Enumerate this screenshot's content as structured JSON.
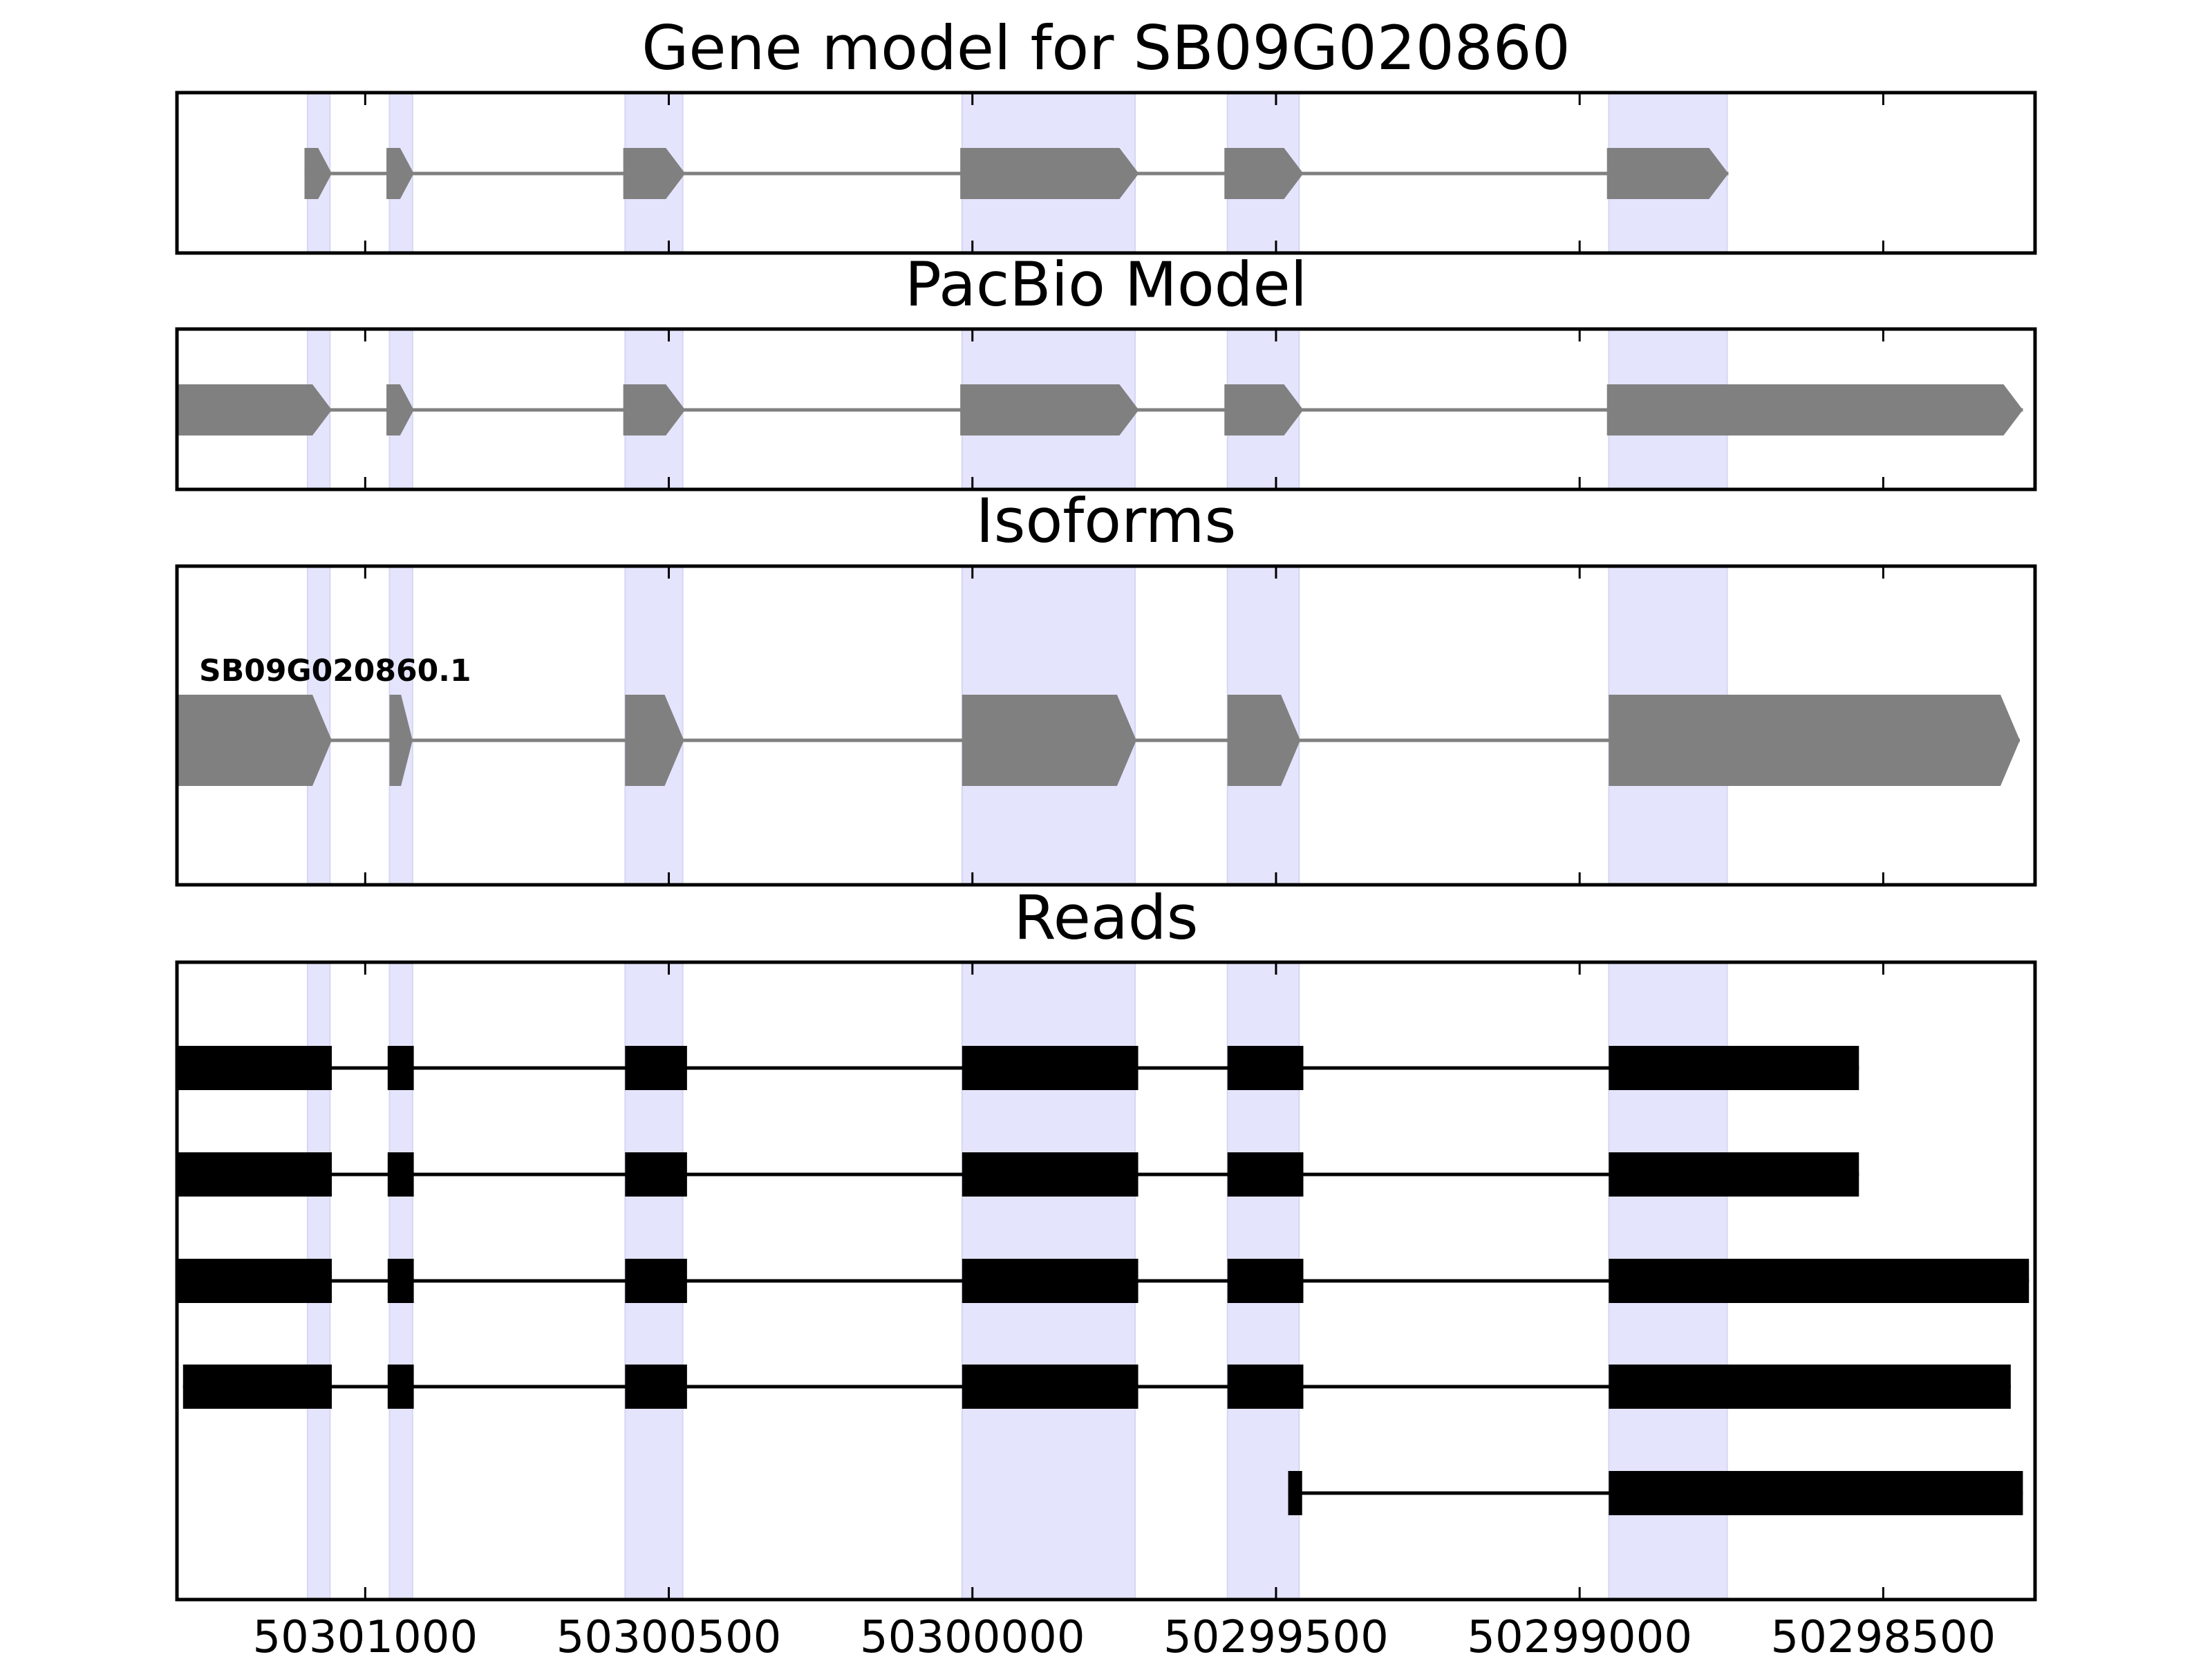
{
  "chart_data": {
    "type": "gene-model-tracks",
    "xaxis": {
      "reversed": true,
      "xlim": [
        50301310,
        50298250
      ],
      "ticks": [
        50301000,
        50300500,
        50300000,
        50299500,
        50299000,
        50298500
      ],
      "tick_labels": [
        "50301000",
        "50300500",
        "50300000",
        "50299500",
        "50299000",
        "50298500"
      ]
    },
    "exon_highlights": [
      [
        50301095,
        50301058
      ],
      [
        50300960,
        50300922
      ],
      [
        50300572,
        50300477
      ],
      [
        50300017,
        50299732
      ],
      [
        50299580,
        50299462
      ],
      [
        50298952,
        50298757
      ]
    ],
    "colors": {
      "highlight": "#e4e4fc",
      "model": "#808080",
      "intron_line": "#808080",
      "read": "#000000"
    },
    "panels": [
      {
        "title": "Gene model for SB09G020860",
        "kind": "model",
        "rows": [
          {
            "label": "",
            "exons": [
              [
                50301100,
                50301055
              ],
              [
                50300965,
                50300920
              ],
              [
                50300575,
                50300473
              ],
              [
                50300020,
                50299726
              ],
              [
                50299585,
                50299455
              ],
              [
                50298955,
                50298755
              ]
            ]
          }
        ]
      },
      {
        "title": "PacBio Model",
        "kind": "model",
        "rows": [
          {
            "label": "",
            "exons": [
              [
                50301310,
                50301055
              ],
              [
                50300965,
                50300920
              ],
              [
                50300575,
                50300473
              ],
              [
                50300020,
                50299726
              ],
              [
                50299585,
                50299455
              ],
              [
                50298955,
                50298270
              ]
            ]
          }
        ]
      },
      {
        "title": "Isoforms",
        "kind": "model",
        "rows": [
          {
            "label": "SB09G020860.1",
            "exons": [
              [
                50301310,
                50301055
              ],
              [
                50300960,
                50300922
              ],
              [
                50300572,
                50300475
              ],
              [
                50300017,
                50299730
              ],
              [
                50299580,
                50299460
              ],
              [
                50298952,
                50298275
              ]
            ]
          }
        ]
      },
      {
        "title": "Reads",
        "kind": "reads",
        "rows": [
          {
            "label": "",
            "exons": [
              [
                50301318,
                50301055
              ],
              [
                50300963,
                50300920
              ],
              [
                50300572,
                50300470
              ],
              [
                50300017,
                50299727
              ],
              [
                50299580,
                50299455
              ],
              [
                50298952,
                50298540
              ]
            ]
          },
          {
            "label": "",
            "exons": [
              [
                50301318,
                50301055
              ],
              [
                50300963,
                50300920
              ],
              [
                50300572,
                50300470
              ],
              [
                50300017,
                50299727
              ],
              [
                50299580,
                50299455
              ],
              [
                50298952,
                50298540
              ]
            ]
          },
          {
            "label": "",
            "exons": [
              [
                50301315,
                50301055
              ],
              [
                50300963,
                50300920
              ],
              [
                50300572,
                50300470
              ],
              [
                50300017,
                50299727
              ],
              [
                50299580,
                50299455
              ],
              [
                50298952,
                50298260
              ]
            ]
          },
          {
            "label": "",
            "exons": [
              [
                50301300,
                50301055
              ],
              [
                50300963,
                50300920
              ],
              [
                50300572,
                50300470
              ],
              [
                50300017,
                50299727
              ],
              [
                50299580,
                50299455
              ],
              [
                50298952,
                50298290
              ]
            ]
          },
          {
            "label": "",
            "exons": [
              [
                50299480,
                50299457
              ],
              [
                50298952,
                50298270
              ]
            ]
          }
        ]
      }
    ]
  }
}
